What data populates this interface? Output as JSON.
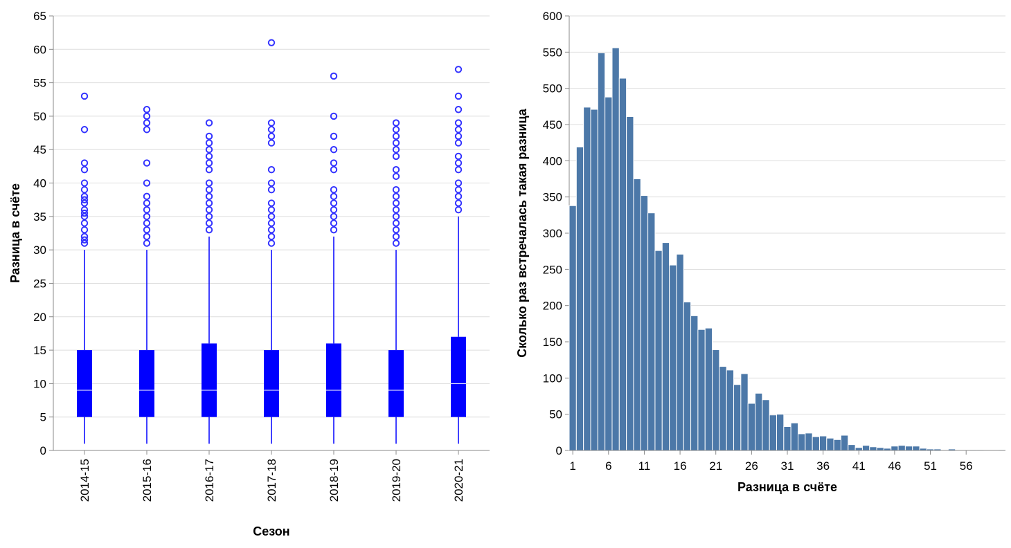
{
  "colors": {
    "box_fill": "#0000ff",
    "box_median": "#ffffff",
    "outlier_stroke": "#3333ff",
    "bar_fill": "#4c78a8",
    "bar_stroke": "#ffffff",
    "grid": "#dddddd",
    "axis": "#888888"
  },
  "chart_data": [
    {
      "type": "boxplot",
      "xlabel": "Сезон",
      "ylabel": "Разница в счёте",
      "ylim": [
        0,
        65
      ],
      "yticks": [
        0,
        5,
        10,
        15,
        20,
        25,
        30,
        35,
        40,
        45,
        50,
        55,
        60,
        65
      ],
      "grid": true,
      "categories": [
        "2014-15",
        "2015-16",
        "2016-17",
        "2017-18",
        "2018-19",
        "2019-20",
        "2020-21"
      ],
      "boxes": [
        {
          "min": 1,
          "q1": 5,
          "median": 9,
          "q3": 15,
          "max": 30,
          "outliers": [
            31,
            31.5,
            32,
            33,
            34,
            35,
            35.5,
            36,
            37,
            37.5,
            38,
            39,
            40,
            42,
            43,
            48,
            53
          ]
        },
        {
          "min": 1,
          "q1": 5,
          "median": 9,
          "q3": 15,
          "max": 30,
          "outliers": [
            31,
            32,
            33,
            34,
            35,
            36,
            37,
            38,
            40,
            43,
            48,
            49,
            50,
            51
          ]
        },
        {
          "min": 1,
          "q1": 5,
          "median": 9,
          "q3": 16,
          "max": 32,
          "outliers": [
            33,
            34,
            35,
            36,
            37,
            38,
            39,
            40,
            42,
            43,
            44,
            45,
            46,
            47,
            49
          ]
        },
        {
          "min": 1,
          "q1": 5,
          "median": 9,
          "q3": 15,
          "max": 30,
          "outliers": [
            31,
            32,
            33,
            34,
            35,
            36,
            37,
            39,
            40,
            42,
            46,
            47,
            48,
            49,
            61
          ]
        },
        {
          "min": 1,
          "q1": 5,
          "median": 9,
          "q3": 16,
          "max": 32,
          "outliers": [
            33,
            34,
            35,
            36,
            37,
            38,
            39,
            42,
            43,
            45,
            47,
            50,
            56
          ]
        },
        {
          "min": 1,
          "q1": 5,
          "median": 9,
          "q3": 15,
          "max": 30,
          "outliers": [
            31,
            32,
            33,
            34,
            35,
            36,
            37,
            38,
            39,
            41,
            42,
            44,
            45,
            46,
            47,
            48,
            49
          ]
        },
        {
          "min": 1,
          "q1": 5,
          "median": 10,
          "q3": 17,
          "max": 35,
          "outliers": [
            36,
            37,
            38,
            39,
            40,
            42,
            43,
            44,
            46,
            47,
            48,
            49,
            51,
            53,
            57
          ]
        }
      ]
    },
    {
      "type": "bar",
      "xlabel": "Разница в счёте",
      "ylabel": "Сколько раз встречалась такая разница",
      "ylim": [
        0,
        600
      ],
      "yticks": [
        0,
        50,
        100,
        150,
        200,
        250,
        300,
        350,
        400,
        450,
        500,
        550,
        600
      ],
      "xticks": [
        1,
        6,
        11,
        16,
        21,
        26,
        31,
        36,
        41,
        46,
        51,
        56
      ],
      "grid": true,
      "categories": [
        1,
        2,
        3,
        4,
        5,
        6,
        7,
        8,
        9,
        10,
        11,
        12,
        13,
        14,
        15,
        16,
        17,
        18,
        19,
        20,
        21,
        22,
        23,
        24,
        25,
        26,
        27,
        28,
        29,
        30,
        31,
        32,
        33,
        34,
        35,
        36,
        37,
        38,
        39,
        40,
        41,
        42,
        43,
        44,
        45,
        46,
        47,
        48,
        49,
        50,
        51,
        52,
        53,
        54,
        55,
        56,
        57,
        58,
        59,
        60,
        61
      ],
      "values": [
        338,
        419,
        474,
        471,
        549,
        488,
        556,
        514,
        461,
        375,
        352,
        328,
        276,
        287,
        256,
        271,
        205,
        186,
        167,
        169,
        139,
        116,
        111,
        91,
        106,
        65,
        79,
        70,
        49,
        50,
        33,
        38,
        23,
        24,
        19,
        20,
        17,
        15,
        21,
        8,
        4,
        7,
        5,
        4,
        3,
        6,
        7,
        6,
        6,
        3,
        2,
        2,
        0,
        2,
        0,
        0,
        1,
        1,
        0,
        0,
        1
      ]
    }
  ]
}
